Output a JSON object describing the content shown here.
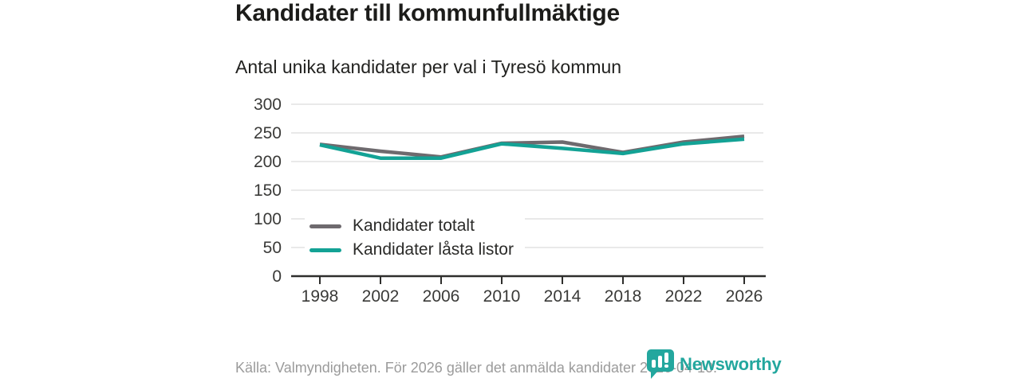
{
  "header": {
    "title": "Kandidater till kommunfullmäktige",
    "subtitle": "Antal unika kandidater per val i Tyresö kommun"
  },
  "chart_data": {
    "type": "line",
    "title": "Kandidater till kommunfullmäktige",
    "subtitle": "Antal unika kandidater per val i Tyresö kommun",
    "categories": [
      "1998",
      "2002",
      "2006",
      "2010",
      "2014",
      "2018",
      "2022",
      "2026"
    ],
    "series": [
      {
        "name": "Kandidater totalt",
        "color": "#6e6a6e",
        "values": [
          230,
          218,
          208,
          232,
          234,
          216,
          234,
          244
        ]
      },
      {
        "name": "Kandidater låsta listor",
        "color": "#13a295",
        "values": [
          229,
          206,
          206,
          231,
          223,
          214,
          231,
          239
        ]
      }
    ],
    "xlabel": "",
    "ylabel": "",
    "ylim": [
      0,
      300
    ],
    "ytick_step": 50,
    "grid": true,
    "gridline_color": "#e2e2e2",
    "axis_color": "#2e2e2c",
    "tick_label_color": "#3a3a38",
    "legend_position": "inside-left"
  },
  "footer": {
    "source": "Källa: Valmyndigheten. För 2026 gäller det anmälda kandidater 2026-04-10.",
    "brand": "Newsworthy",
    "brand_color": "#23a79e"
  }
}
